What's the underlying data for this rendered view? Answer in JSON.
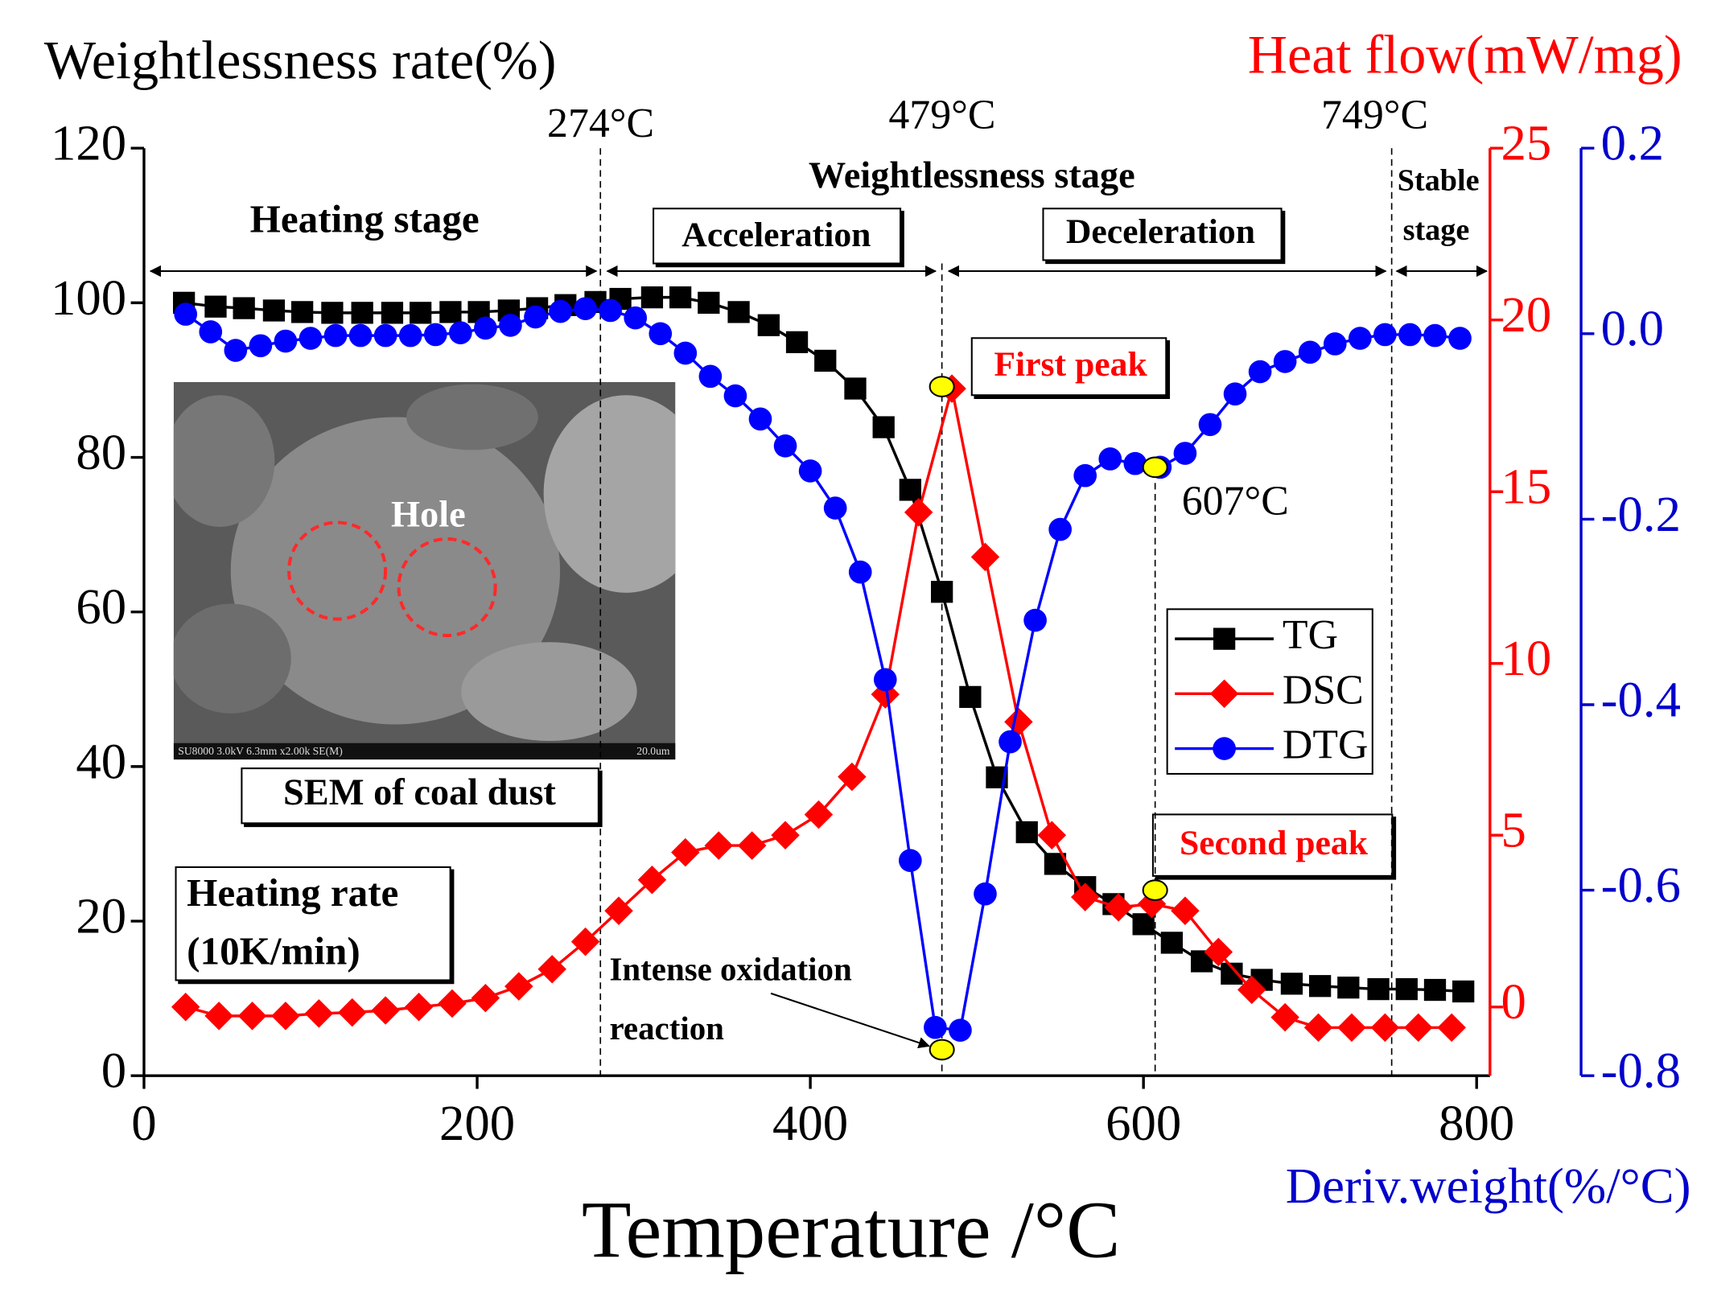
{
  "chart_data": {
    "type": "line",
    "ylabel": "Weightlessness rate(%)",
    "y2label": "Heat flow(mW/mg)",
    "y3label": "Deriv.weight(%/°C)",
    "xlabel": "Temperature /°C",
    "xlim": [
      0,
      808
    ],
    "xticks": [
      0,
      200,
      400,
      600,
      800
    ],
    "ylim": [
      0,
      120
    ],
    "yticks": [
      0,
      20,
      40,
      60,
      80,
      100,
      120
    ],
    "y2lim": [
      -2,
      25
    ],
    "y2ticks": [
      0,
      5,
      10,
      15,
      20,
      25
    ],
    "y3lim": [
      -0.8,
      0.2
    ],
    "y3ticks": [
      -0.8,
      -0.6,
      -0.4,
      -0.2,
      {
        "value": 0,
        "label": "0.0"
      },
      0.2
    ],
    "series": [
      {
        "name": "TG",
        "color": "#000000",
        "marker": "square",
        "axis": "y",
        "x": [
          24,
          43,
          60,
          78,
          95,
          113,
          131,
          149,
          166,
          184,
          201,
          219,
          236,
          253,
          271,
          286,
          305,
          322,
          339,
          357,
          375,
          392,
          409,
          427,
          444,
          460,
          479,
          496,
          512,
          530,
          547,
          565,
          582,
          600,
          617,
          635,
          653,
          671,
          689,
          706,
          723,
          741,
          758,
          775,
          792
        ],
        "values": [
          100.0,
          99.5,
          99.3,
          99.0,
          98.8,
          98.7,
          98.7,
          98.7,
          98.7,
          98.8,
          98.8,
          99.0,
          99.3,
          99.7,
          100.1,
          100.5,
          100.7,
          100.7,
          100.0,
          98.8,
          97.1,
          94.9,
          92.5,
          88.9,
          83.9,
          75.8,
          62.6,
          49.0,
          38.6,
          31.5,
          27.4,
          24.4,
          22.2,
          19.6,
          17.2,
          14.8,
          13.2,
          12.4,
          11.9,
          11.6,
          11.4,
          11.2,
          11.2,
          11.1,
          10.9
        ]
      },
      {
        "name": "DSC",
        "color": "#ff0000",
        "marker": "diamond",
        "axis": "y2",
        "x": [
          25,
          45,
          65,
          85,
          105,
          125,
          145,
          165,
          185,
          205,
          225,
          245,
          265,
          285,
          305,
          325,
          345,
          365,
          385,
          405,
          425,
          445,
          465,
          485,
          505,
          525,
          545,
          565,
          585,
          605,
          625,
          645,
          665,
          685,
          705,
          725,
          745,
          765,
          785
        ],
        "values": [
          0,
          -0.26,
          -0.26,
          -0.26,
          -0.19,
          -0.16,
          -0.1,
          0,
          0.1,
          0.26,
          0.6,
          1.1,
          1.9,
          2.8,
          3.7,
          4.5,
          4.7,
          4.7,
          5.0,
          5.6,
          6.7,
          9.1,
          14.4,
          18.0,
          13.1,
          8.3,
          5.0,
          3.2,
          2.9,
          3.0,
          2.8,
          1.6,
          0.5,
          -0.3,
          -0.6,
          -0.6,
          -0.6,
          -0.6,
          -0.6
        ]
      },
      {
        "name": "DTG",
        "color": "#0000ff",
        "marker": "circle",
        "axis": "y3",
        "x": [
          25,
          40,
          55,
          70,
          85,
          100,
          115,
          130,
          145,
          160,
          175,
          190,
          205,
          220,
          235,
          250,
          265,
          280,
          295,
          310,
          325,
          340,
          355,
          370,
          385,
          400,
          415,
          430,
          445,
          460,
          475,
          490,
          505,
          520,
          535,
          550,
          565,
          580,
          595,
          610,
          625,
          640,
          655,
          670,
          685,
          700,
          715,
          730,
          745,
          760,
          775,
          790
        ],
        "values": [
          0.021,
          0.002,
          -0.018,
          -0.013,
          -0.008,
          -0.005,
          -0.002,
          -0.002,
          -0.002,
          -0.002,
          -0.001,
          0.001,
          0.006,
          0.009,
          0.018,
          0.024,
          0.027,
          0.025,
          0.017,
          0,
          -0.021,
          -0.046,
          -0.067,
          -0.092,
          -0.121,
          -0.148,
          -0.188,
          -0.257,
          -0.373,
          -0.568,
          -0.748,
          -0.751,
          -0.604,
          -0.44,
          -0.309,
          -0.211,
          -0.153,
          -0.135,
          -0.14,
          -0.144,
          -0.129,
          -0.098,
          -0.065,
          -0.041,
          -0.03,
          -0.02,
          -0.011,
          -0.005,
          -0.001,
          -0.001,
          -0.002,
          -0.005
        ]
      }
    ],
    "legend": "center-right",
    "highlights": [
      {
        "x": 479,
        "value": 18.06,
        "axis": "y2"
      },
      {
        "x": 479,
        "value": -0.772,
        "axis": "y3"
      },
      {
        "x": 607,
        "value": -0.144,
        "axis": "y3"
      },
      {
        "x": 607,
        "value": 3.4,
        "axis": "y2"
      }
    ],
    "vlines": [
      {
        "x": 274,
        "label": "274°C"
      },
      {
        "x": 479,
        "label": "479°C"
      },
      {
        "x": 607,
        "label": "607°C"
      },
      {
        "x": 749,
        "label": "749°C"
      }
    ],
    "annotations": {
      "weightlessness_stage": "Weightlessness  stage",
      "heating_stage": "Heating stage",
      "acceleration": "Acceleration",
      "deceleration": "Deceleration",
      "stable_stage": [
        "Stable",
        "stage"
      ],
      "first_peak": "First peak",
      "second_peak": "Second peak",
      "sem_caption": "SEM of coal dust",
      "heating_rate": [
        "Heating rate",
        "(10K/min)"
      ],
      "intense": [
        "Intense oxidation",
        "reaction"
      ],
      "hole": "Hole",
      "sem_info": "SU8000 3.0kV 6.3mm x2.00k SE(M)",
      "sem_scale": "20.0um"
    }
  }
}
